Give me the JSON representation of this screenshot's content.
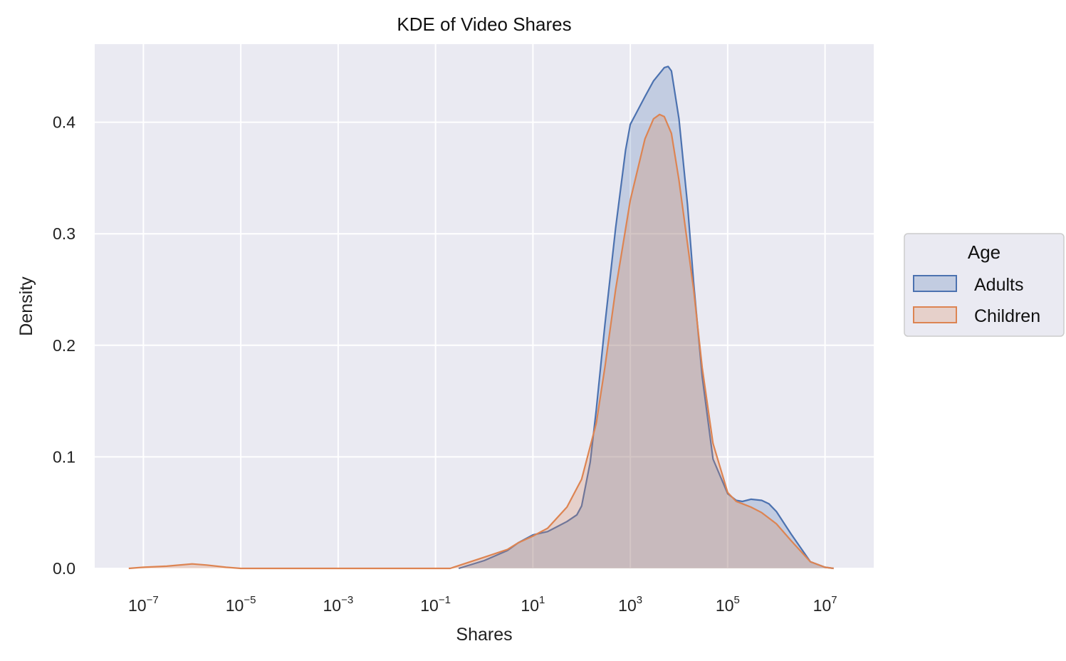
{
  "chart_data": {
    "type": "area",
    "title": "KDE of Video Shares",
    "xlabel": "Shares",
    "ylabel": "Density",
    "x_scale": "log",
    "xlim": [
      1e-08,
      100000000.0
    ],
    "ylim": [
      0,
      0.47
    ],
    "x_ticks": [
      1e-07,
      1e-05,
      0.001,
      0.1,
      10.0,
      1000.0,
      100000.0,
      10000000.0
    ],
    "x_tick_labels": [
      {
        "base": "10",
        "exp": "−7"
      },
      {
        "base": "10",
        "exp": "−5"
      },
      {
        "base": "10",
        "exp": "−3"
      },
      {
        "base": "10",
        "exp": "−1"
      },
      {
        "base": "10",
        "exp": "1"
      },
      {
        "base": "10",
        "exp": "3"
      },
      {
        "base": "10",
        "exp": "5"
      },
      {
        "base": "10",
        "exp": "7"
      }
    ],
    "y_ticks": [
      0.0,
      0.1,
      0.2,
      0.3,
      0.4
    ],
    "y_tick_labels": [
      "0.0",
      "0.1",
      "0.2",
      "0.3",
      "0.4"
    ],
    "grid": true,
    "legend": {
      "title": "Age",
      "position": "outside-right"
    },
    "series": [
      {
        "name": "Adults",
        "color": "#4c72b0",
        "x": [
          0.3,
          1,
          3,
          5,
          10,
          20,
          30,
          50,
          80,
          100,
          150,
          200,
          300,
          500,
          800,
          1000,
          2000,
          3000,
          5000,
          6000,
          7000,
          10000,
          15000,
          20000,
          30000,
          50000,
          100000,
          150000,
          200000,
          300000,
          500000,
          700000,
          1000000,
          2000000,
          5000000,
          10000000,
          15000000
        ],
        "values": [
          0.0,
          0.007,
          0.016,
          0.023,
          0.03,
          0.033,
          0.037,
          0.042,
          0.048,
          0.056,
          0.095,
          0.142,
          0.218,
          0.305,
          0.375,
          0.398,
          0.423,
          0.437,
          0.449,
          0.45,
          0.446,
          0.403,
          0.326,
          0.256,
          0.172,
          0.098,
          0.067,
          0.061,
          0.06,
          0.062,
          0.061,
          0.058,
          0.051,
          0.031,
          0.006,
          0.001,
          0.0
        ]
      },
      {
        "name": "Children",
        "color": "#dd8452",
        "x": [
          5e-08,
          1e-07,
          3e-07,
          1e-06,
          2e-06,
          5e-06,
          1e-05,
          0.2,
          1,
          3,
          5,
          10,
          20,
          50,
          100,
          200,
          300,
          500,
          1000,
          2000,
          3000,
          4000,
          5000,
          7000,
          10000,
          20000,
          30000,
          50000,
          100000,
          150000,
          200000,
          300000,
          500000,
          1000000,
          2000000,
          5000000,
          10000000,
          15000000
        ],
        "values": [
          0.0,
          0.001,
          0.002,
          0.004,
          0.003,
          0.001,
          0.0,
          0.0,
          0.01,
          0.017,
          0.023,
          0.029,
          0.036,
          0.055,
          0.08,
          0.13,
          0.18,
          0.25,
          0.33,
          0.385,
          0.403,
          0.407,
          0.405,
          0.39,
          0.348,
          0.25,
          0.18,
          0.112,
          0.068,
          0.06,
          0.058,
          0.055,
          0.05,
          0.04,
          0.025,
          0.006,
          0.001,
          0.0
        ]
      }
    ]
  }
}
